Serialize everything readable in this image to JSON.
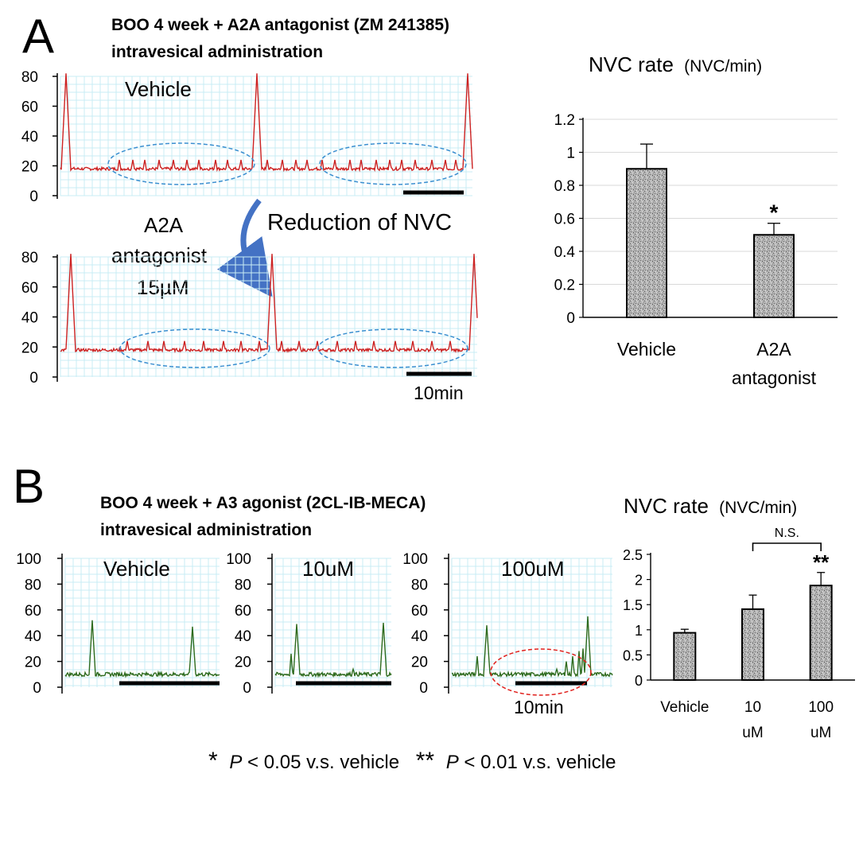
{
  "colors": {
    "trace_A": "#cc2222",
    "trace_B": "#2e6b1e",
    "grid": "#c9ecf4",
    "bar_fill": "#b8b8b8",
    "ellipse_blue": "#3a8fd0",
    "ellipse_red": "#e0201c",
    "arrow": "#4472c4"
  },
  "panel_A": {
    "letter": "A",
    "title_line1": "BOO 4 week + A2A antagonist (ZM 241385)",
    "title_line2": "intravesical administration",
    "trace_vehicle_label": "Vehicle",
    "trace_antagonist_label_1": "A2A",
    "trace_antagonist_label_2": "antagonist",
    "trace_antagonist_label_3": "15µM",
    "reduction_label": "Reduction of NVC",
    "scale_label": "10min",
    "trace_yticks": [
      "80",
      "60",
      "40",
      "20",
      "0"
    ]
  },
  "panel_B": {
    "letter": "B",
    "title_line1": "BOO 4 week + A3 agonist (2CL-IB-MECA)",
    "title_line2": "intravesical administration",
    "trace_labels": [
      "Vehicle",
      "10uM",
      "100uM"
    ],
    "scale_label": "10min",
    "trace_yticks": [
      "100",
      "80",
      "60",
      "40",
      "20",
      "0"
    ]
  },
  "footnote": {
    "star1": "*",
    "p1_italic": "P",
    "p1_rest": " < 0.05 v.s. vehicle",
    "star2": "**",
    "p2_italic": "P",
    "p2_rest": " < 0.01 v.s. vehicle"
  },
  "chart_data": [
    {
      "type": "bar",
      "title": "NVC rate",
      "title_unit": "(NVC/min)",
      "categories": [
        "Vehicle",
        "A2A antagonist"
      ],
      "category_lines": [
        [
          "Vehicle"
        ],
        [
          "A2A",
          "antagonist"
        ]
      ],
      "values": [
        0.9,
        0.5
      ],
      "errors": [
        0.15,
        0.07
      ],
      "annotations": [
        "",
        "*"
      ],
      "ylim": [
        0,
        1.2
      ],
      "yticks": [
        "0",
        "0.2",
        "0.4",
        "0.6",
        "0.8",
        "1",
        "1.2"
      ],
      "grid": true
    },
    {
      "type": "bar",
      "title": "NVC rate",
      "title_unit": "(NVC/min)",
      "categories": [
        "Vehicle",
        "10 uM",
        "100 uM"
      ],
      "category_lines": [
        [
          "Vehicle"
        ],
        [
          "10",
          "uM"
        ],
        [
          "100",
          "uM"
        ]
      ],
      "values": [
        0.94,
        1.41,
        1.88
      ],
      "errors": [
        0.07,
        0.28,
        0.26
      ],
      "annotations": [
        "",
        "",
        "**"
      ],
      "bracket_label": "N.S.",
      "ylim": [
        0,
        2.5
      ],
      "yticks": [
        "0",
        "0.5",
        "1",
        "1.5",
        "2",
        "2.5"
      ],
      "grid": false
    }
  ]
}
